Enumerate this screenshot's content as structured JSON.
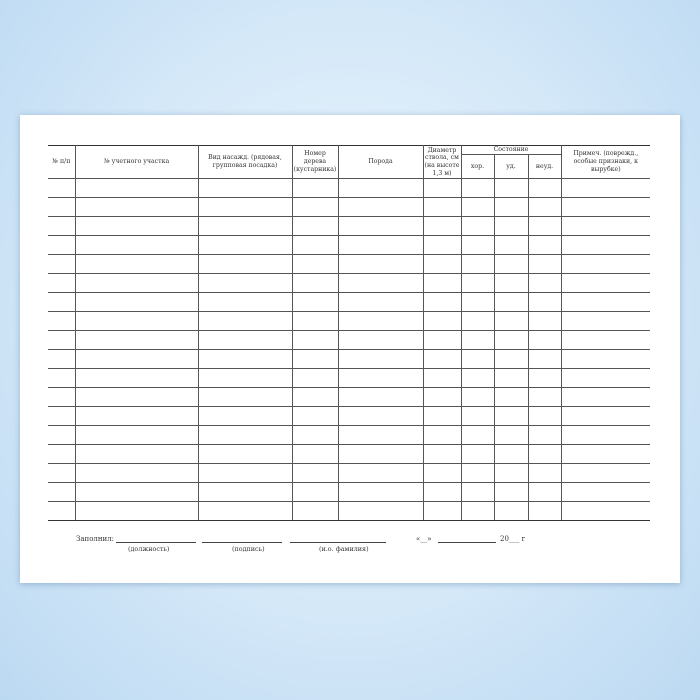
{
  "form": {
    "headers": {
      "num": "№ п/п",
      "plot": "№ учетного участка",
      "planting": "Вид насажд. (рядовая, групповая посадка)",
      "tree_number": "Номер дерева (кустарника)",
      "species": "Порода",
      "diameter": "Диаметр ствола, см (на высоте 1,3 м)",
      "condition": "Состояние",
      "good": "хор.",
      "satisfactory": "уд.",
      "unsatisfactory": "неуд.",
      "notes": "Примеч. (поврежд., особые признаки, к вырубке)"
    },
    "row_count": 18,
    "footer": {
      "filled_by": "Заполнил:",
      "position": "(должность)",
      "signature": "(подпись)",
      "name": "(и.о. фамилия)",
      "date_quote": "«__»",
      "year": "20___ г"
    }
  }
}
